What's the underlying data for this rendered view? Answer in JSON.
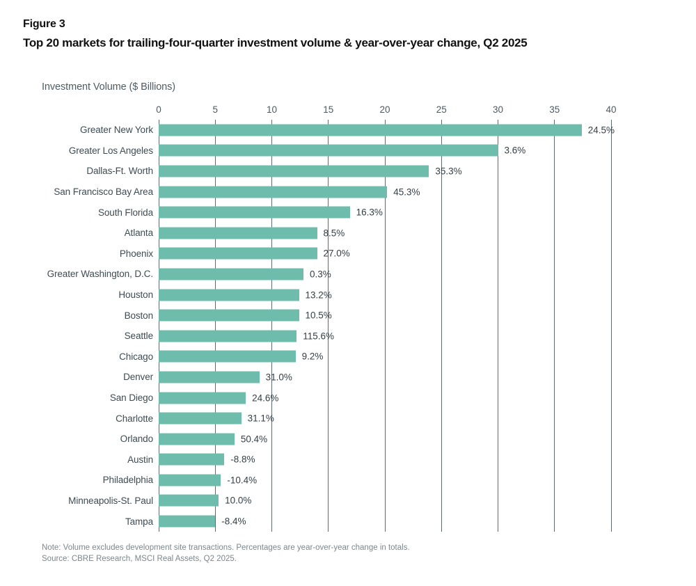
{
  "figure": {
    "label": "Figure 3",
    "title": "Top 20 markets for trailing-four-quarter investment volume & year-over-year change, Q2 2025"
  },
  "chart_data": {
    "type": "bar",
    "orientation": "horizontal",
    "title": "Top 20 markets for trailing-four-quarter investment volume & year-over-year change, Q2 2025",
    "axis_title": "Investment Volume ($ Billions)",
    "xlabel": "Investment Volume ($ Billions)",
    "ylabel": "",
    "xlim": [
      0,
      40
    ],
    "x_ticks": [
      0,
      5,
      10,
      15,
      20,
      25,
      30,
      35,
      40
    ],
    "grid": true,
    "bar_color": "#6ebcab",
    "gridline_color": "#5e6a71",
    "categories": [
      "Greater New York",
      "Greater Los Angeles",
      "Dallas-Ft. Worth",
      "San Francisco Bay Area",
      "South Florida",
      "Atlanta",
      "Phoenix",
      "Greater Washington, D.C.",
      "Houston",
      "Boston",
      "Seattle",
      "Chicago",
      "Denver",
      "San Diego",
      "Charlotte",
      "Orlando",
      "Austin",
      "Philadelphia",
      "Minneapolis-St. Paul",
      "Tampa"
    ],
    "values_billions": [
      37.4,
      30.0,
      23.9,
      20.2,
      16.9,
      14.0,
      14.0,
      12.8,
      12.4,
      12.4,
      12.2,
      12.1,
      8.9,
      7.7,
      7.3,
      6.7,
      5.8,
      5.5,
      5.3,
      5.0
    ],
    "yoy_change_labels": [
      "24.5%",
      "3.6%",
      "35.3%",
      "45.3%",
      "16.3%",
      "8.5%",
      "27.0%",
      "0.3%",
      "13.2%",
      "10.5%",
      "115.6%",
      "9.2%",
      "31.0%",
      "24.6%",
      "31.1%",
      "50.4%",
      "-8.8%",
      "-10.4%",
      "10.0%",
      "-8.4%"
    ]
  },
  "footer": {
    "note": "Note: Volume excludes development site transactions. Percentages are year-over-year change in totals.",
    "source": "Source: CBRE Research, MSCI Real Assets, Q2 2025."
  }
}
